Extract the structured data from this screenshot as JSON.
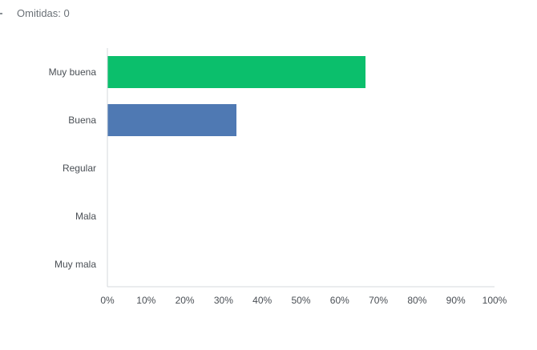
{
  "summary": {
    "omitted_label": "Omitidas: 0"
  },
  "chart_data": {
    "type": "bar",
    "orientation": "horizontal",
    "title": "",
    "xlabel": "",
    "ylabel": "",
    "categories": [
      "Muy buena",
      "Buena",
      "Regular",
      "Mala",
      "Muy mala"
    ],
    "values": [
      66.67,
      33.33,
      0,
      0,
      0
    ],
    "colors": [
      "#0bbf6c",
      "#4f79b3",
      "#0bbf6c",
      "#0bbf6c",
      "#0bbf6c"
    ],
    "xlim": [
      0,
      100
    ],
    "xticks": [
      0,
      10,
      20,
      30,
      40,
      50,
      60,
      70,
      80,
      90,
      100
    ],
    "xtick_labels": [
      "0%",
      "10%",
      "20%",
      "30%",
      "40%",
      "50%",
      "60%",
      "70%",
      "80%",
      "90%",
      "100%"
    ],
    "axis_color": "#d6d9dc",
    "grid": false,
    "legend": false
  }
}
